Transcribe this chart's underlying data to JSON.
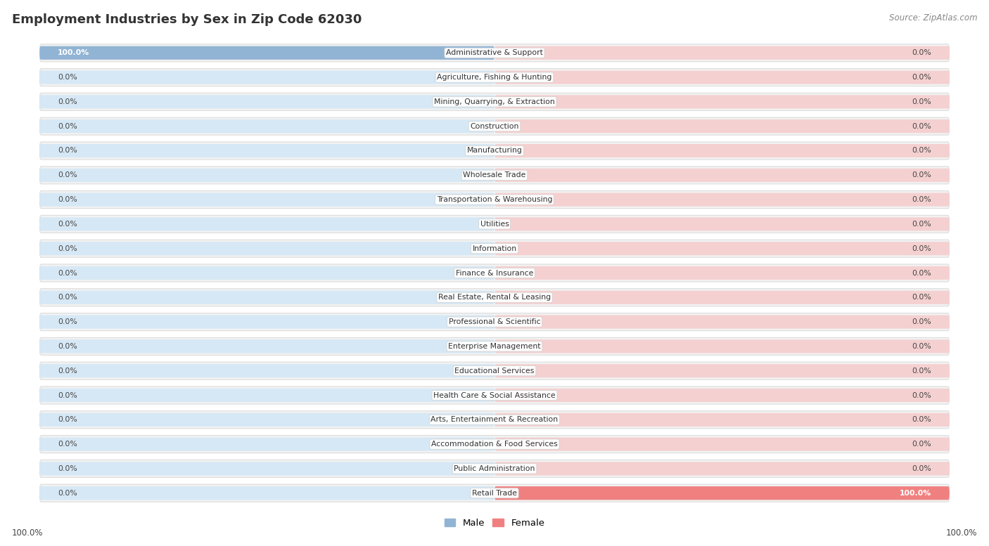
{
  "title": "Employment Industries by Sex in Zip Code 62030",
  "source": "Source: ZipAtlas.com",
  "categories": [
    "Administrative & Support",
    "Agriculture, Fishing & Hunting",
    "Mining, Quarrying, & Extraction",
    "Construction",
    "Manufacturing",
    "Wholesale Trade",
    "Transportation & Warehousing",
    "Utilities",
    "Information",
    "Finance & Insurance",
    "Real Estate, Rental & Leasing",
    "Professional & Scientific",
    "Enterprise Management",
    "Educational Services",
    "Health Care & Social Assistance",
    "Arts, Entertainment & Recreation",
    "Accommodation & Food Services",
    "Public Administration",
    "Retail Trade"
  ],
  "male_values": [
    100.0,
    0.0,
    0.0,
    0.0,
    0.0,
    0.0,
    0.0,
    0.0,
    0.0,
    0.0,
    0.0,
    0.0,
    0.0,
    0.0,
    0.0,
    0.0,
    0.0,
    0.0,
    0.0
  ],
  "female_values": [
    0.0,
    0.0,
    0.0,
    0.0,
    0.0,
    0.0,
    0.0,
    0.0,
    0.0,
    0.0,
    0.0,
    0.0,
    0.0,
    0.0,
    0.0,
    0.0,
    0.0,
    0.0,
    100.0
  ],
  "male_color": "#92B4D4",
  "female_color": "#F08080",
  "bar_bg_male": "#D6E8F5",
  "bar_bg_female": "#F5D0D0",
  "row_fill": "#F2F2F2",
  "row_edge": "#DDDDDD",
  "label_color": "#444444",
  "title_color": "#333333",
  "source_color": "#888888",
  "xlim_left": -100,
  "xlim_right": 100,
  "axis_label_left": "100.0%",
  "axis_label_right": "100.0%",
  "legend_male": "Male",
  "legend_female": "Female"
}
